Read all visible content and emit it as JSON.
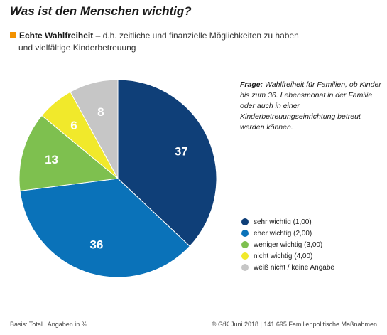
{
  "header": {
    "title": "Was ist den Menschen wichtig?",
    "topic": "Echte Wahlfreiheit",
    "topic_rest": "– d.h. zeitliche und finanzielle Möglichkeiten zu haben",
    "topic_line2": "und vielfältige Kinderbetreuung",
    "marker_color": "#f39200"
  },
  "question": {
    "label": "Frage:",
    "text": "Wahlfreiheit für Familien, ob Kinder bis zum 36. Lebensmonat in der Familie oder auch in einer Kinderbetreuungseinrichtung betreut werden können."
  },
  "chart_data": {
    "type": "pie",
    "start": "12 o'clock, clockwise",
    "labels": [
      "sehr wichtig (1,00)",
      "eher wichtig (2,00)",
      "weniger wichtig (3,00)",
      "nicht wichtig (4,00)",
      "weiß nicht / keine Angabe"
    ],
    "values": [
      37,
      36,
      13,
      6,
      8
    ],
    "colors": [
      "#0f3f78",
      "#0a72b9",
      "#7ec04f",
      "#f1e92b",
      "#c6c6c6"
    ],
    "label_colors": [
      "#ffffff",
      "#ffffff",
      "#ffffff",
      "#ffffff",
      "#ffffff"
    ],
    "legend_position": "right"
  },
  "footer": {
    "basis": "Basis: Total | Angaben in %",
    "source": "© GfK Juni 2018 | 141.695 Familienpolitische Maßnahmen"
  }
}
